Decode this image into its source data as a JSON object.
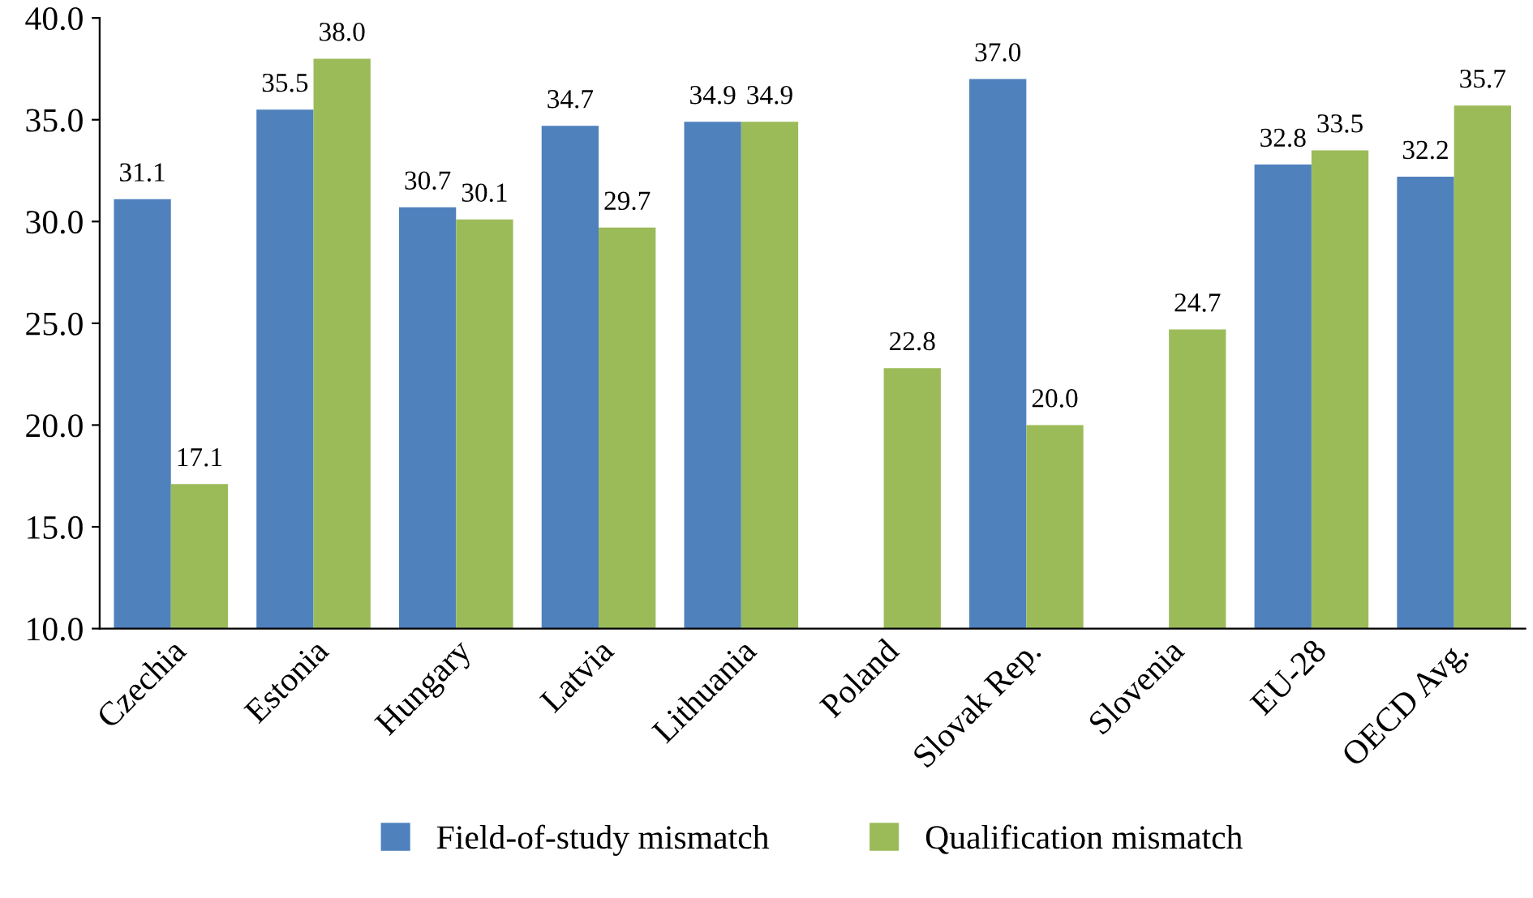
{
  "chart_data": {
    "type": "bar",
    "categories": [
      "Czechia",
      "Estonia",
      "Hungary",
      "Latvia",
      "Lithuania",
      "Poland",
      "Slovak Rep.",
      "Slovenia",
      "EU-28",
      "OECD Avg."
    ],
    "series": [
      {
        "name": "Field-of-study mismatch",
        "color": "#4f81bd",
        "values": [
          31.1,
          35.5,
          30.7,
          34.7,
          34.9,
          null,
          37.0,
          null,
          32.8,
          32.2
        ],
        "value_labels": [
          "31.1",
          "35.5",
          "30.7",
          "34.7",
          "34.9",
          null,
          "37.0",
          null,
          "32.8",
          "32.2"
        ]
      },
      {
        "name": "Qualification mismatch",
        "color": "#9bbb59",
        "values": [
          17.1,
          38.0,
          30.1,
          29.7,
          34.9,
          22.8,
          20.0,
          24.7,
          33.5,
          35.7
        ],
        "value_labels": [
          "17.1",
          "38.0",
          "30.1",
          "29.7",
          "34.9",
          "22.8",
          "20.0",
          "24.7",
          "33.5",
          "35.7"
        ]
      }
    ],
    "ylim": [
      10,
      40
    ],
    "yticks": [
      {
        "value": 10,
        "label": "10.0"
      },
      {
        "value": 15,
        "label": "15.0"
      },
      {
        "value": 20,
        "label": "20.0"
      },
      {
        "value": 25,
        "label": "25.0"
      },
      {
        "value": 30,
        "label": "30.0"
      },
      {
        "value": 35,
        "label": "35.0"
      },
      {
        "value": 40,
        "label": "40.0"
      }
    ],
    "grid": false,
    "legend": "bottom"
  }
}
